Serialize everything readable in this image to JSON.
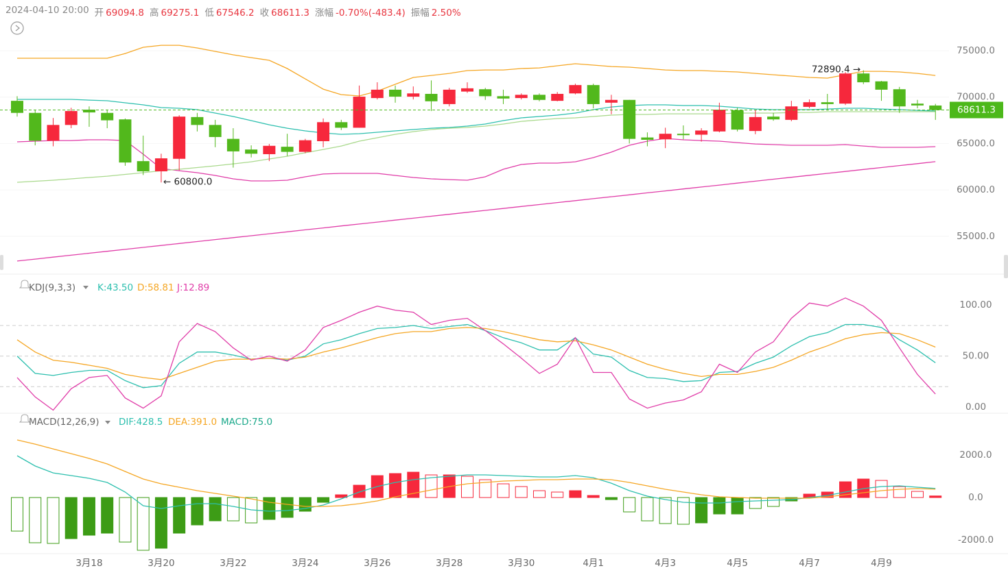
{
  "header": {
    "datetime": "2024-04-10 20:00",
    "fields": [
      {
        "label": "开",
        "value": "69094.8"
      },
      {
        "label": "高",
        "value": "69275.1"
      },
      {
        "label": "低",
        "value": "67546.2"
      },
      {
        "label": "收",
        "value": "68611.3"
      },
      {
        "label": "涨幅",
        "value": "-0.70%(-483.4)"
      },
      {
        "label": "振幅",
        "value": "2.50%"
      }
    ]
  },
  "chart_data": [
    {
      "type": "candlestick",
      "categories": [
        null,
        null,
        null,
        null,
        "3月18",
        null,
        null,
        null,
        "3月20",
        null,
        null,
        null,
        "3月22",
        null,
        null,
        null,
        "3月24",
        null,
        null,
        null,
        "3月26",
        null,
        null,
        null,
        "3月28",
        null,
        null,
        null,
        "3月30",
        null,
        null,
        null,
        "4月1",
        null,
        null,
        null,
        "4月3",
        null,
        null,
        null,
        "4月5",
        null,
        null,
        null,
        "4月7",
        null,
        null,
        null,
        "4月9",
        null,
        null,
        null
      ],
      "open": [
        69600,
        68300,
        65300,
        67000,
        68650,
        68300,
        67600,
        63100,
        62000,
        63350,
        67850,
        67000,
        65500,
        64350,
        63850,
        64650,
        64100,
        65250,
        67300,
        66700,
        69900,
        70800,
        70050,
        70350,
        69250,
        70600,
        70850,
        70100,
        69900,
        70250,
        69600,
        70400,
        71300,
        69400,
        69700,
        65650,
        65450,
        66050,
        65950,
        66300,
        68600,
        66350,
        67900,
        67550,
        68950,
        69450,
        69300,
        72550,
        71700,
        70850,
        69300,
        69094.8
      ],
      "high": [
        70100,
        68650,
        67750,
        68850,
        69000,
        68650,
        67700,
        65850,
        63900,
        68050,
        68300,
        67550,
        66650,
        64800,
        64950,
        66050,
        65500,
        67700,
        67550,
        71250,
        71600,
        71250,
        71150,
        71800,
        71000,
        71600,
        71000,
        70800,
        70400,
        70400,
        70550,
        71450,
        71450,
        70250,
        69700,
        66200,
        66700,
        66950,
        66650,
        69400,
        68850,
        68600,
        68300,
        69600,
        69750,
        70350,
        72700,
        72890.4,
        71750,
        71100,
        69700,
        69275.1
      ],
      "low": [
        67900,
        64800,
        64700,
        66650,
        66800,
        66650,
        62600,
        61600,
        60800,
        62100,
        66300,
        64600,
        62400,
        63500,
        63100,
        63650,
        63950,
        64600,
        66450,
        66700,
        69750,
        69400,
        69750,
        68500,
        69000,
        70450,
        69700,
        69250,
        69750,
        69550,
        69550,
        70300,
        68800,
        68150,
        65000,
        64700,
        64500,
        65450,
        65200,
        66200,
        66300,
        66000,
        67450,
        67400,
        68800,
        68550,
        69150,
        71400,
        69600,
        68300,
        68800,
        67546.2
      ],
      "close": [
        68300,
        65300,
        67000,
        68500,
        68350,
        67500,
        62950,
        62000,
        63400,
        67900,
        67000,
        65700,
        64150,
        63900,
        64750,
        64100,
        65350,
        67300,
        66700,
        70050,
        70800,
        70050,
        70400,
        69550,
        70800,
        70950,
        70100,
        69850,
        70250,
        69700,
        70350,
        71300,
        69250,
        69700,
        65500,
        65400,
        66050,
        65900,
        66400,
        68650,
        66500,
        67850,
        67600,
        69000,
        69450,
        69250,
        72550,
        71600,
        70800,
        69000,
        69100,
        68611.3
      ],
      "up_color": "#f6283c",
      "down_color": "#52b81c",
      "series": [
        {
          "color": "#f5a623",
          "values": [
            74190,
            74190,
            74190,
            74190,
            74190,
            74190,
            74700,
            75370,
            75590,
            75590,
            75300,
            74930,
            74560,
            74260,
            73970,
            73080,
            71970,
            70860,
            70270,
            70130,
            70640,
            71380,
            72120,
            72340,
            72560,
            72860,
            72930,
            72930,
            73080,
            73150,
            73380,
            73600,
            73450,
            73300,
            73230,
            73080,
            72930,
            72860,
            72860,
            72780,
            72710,
            72560,
            72410,
            72270,
            72120,
            72050,
            72410,
            72780,
            72780,
            72710,
            72560,
            72340
          ]
        },
        {
          "color": "#2cbfae",
          "values": [
            69760,
            69760,
            69760,
            69760,
            69680,
            69610,
            69390,
            69170,
            68870,
            68800,
            68650,
            68280,
            67910,
            67470,
            67020,
            66650,
            66360,
            66140,
            65990,
            66060,
            66210,
            66360,
            66510,
            66650,
            66730,
            66880,
            67100,
            67470,
            67760,
            67910,
            68060,
            68280,
            68650,
            68940,
            69090,
            69170,
            69170,
            69090,
            69090,
            69020,
            68870,
            68720,
            68650,
            68650,
            68650,
            68720,
            68800,
            68800,
            68720,
            68650,
            68570,
            68500
          ]
        },
        {
          "color": "#e03ca8",
          "values": [
            65180,
            65250,
            65320,
            65320,
            65400,
            65400,
            65320,
            63850,
            62300,
            62070,
            61850,
            61560,
            61190,
            60970,
            60970,
            61040,
            61410,
            61710,
            61780,
            61780,
            61780,
            61560,
            61340,
            61190,
            61110,
            61040,
            61410,
            62220,
            62740,
            62890,
            62890,
            63030,
            63480,
            64070,
            64810,
            65250,
            65550,
            65400,
            65320,
            65250,
            65100,
            64950,
            64880,
            64810,
            64810,
            64810,
            64880,
            64730,
            64590,
            64590,
            64590,
            64660
          ]
        },
        {
          "color": "#a9d98c",
          "values": [
            60820,
            60930,
            61040,
            61190,
            61340,
            61480,
            61670,
            61850,
            62070,
            62220,
            62410,
            62590,
            62810,
            63030,
            63330,
            63630,
            64000,
            64360,
            64730,
            65250,
            65620,
            65990,
            66280,
            66510,
            66650,
            66730,
            66880,
            67100,
            67390,
            67540,
            67690,
            67760,
            67910,
            68060,
            68130,
            68130,
            68200,
            68200,
            68200,
            68200,
            68280,
            68280,
            68280,
            68350,
            68350,
            68430,
            68430,
            68430,
            68430,
            68430,
            68430,
            68430
          ]
        },
        {
          "color": "#e03ca8",
          "values": [
            52330,
            52540,
            52750,
            52960,
            53170,
            53380,
            53590,
            53800,
            54010,
            54220,
            54430,
            54640,
            54850,
            55060,
            55270,
            55480,
            55690,
            55900,
            56110,
            56320,
            56530,
            56740,
            56950,
            57160,
            57370,
            57580,
            57790,
            58000,
            58210,
            58420,
            58630,
            58840,
            59050,
            59260,
            59470,
            59680,
            59890,
            60100,
            60310,
            60520,
            60730,
            60940,
            61150,
            61360,
            61570,
            61780,
            61990,
            62200,
            62410,
            62620,
            62830,
            63040
          ]
        }
      ],
      "ylim": [
        50920,
        80470
      ],
      "yticks": [
        {
          "value": 55000,
          "label": "55000.0"
        },
        {
          "value": 60000,
          "label": "60000.0"
        },
        {
          "value": 65000,
          "label": "65000.0"
        },
        {
          "value": 70000,
          "label": "70000.0"
        },
        {
          "value": 75000,
          "label": "75000.0"
        }
      ],
      "last_price": {
        "value": 68611.3,
        "label": "68611.3",
        "color": "#4cb81a"
      },
      "high_marker": {
        "value": 72890.4,
        "label": "72890.4 →"
      },
      "low_marker": {
        "value": 60800,
        "label": "← 60800.0"
      }
    },
    {
      "type": "line",
      "title": "KDJ(9,3,3)",
      "series": [
        {
          "name": "K:43.50",
          "color": "#2cbfae",
          "values": [
            50,
            33,
            31,
            34,
            36,
            36,
            26,
            19,
            21,
            43,
            54,
            54,
            51,
            47,
            48,
            46,
            50,
            62,
            66,
            72,
            77,
            78,
            80,
            77,
            79,
            81,
            75,
            68,
            63,
            56,
            56,
            68,
            52,
            49,
            36,
            29,
            28,
            25,
            26,
            34,
            35,
            43,
            49,
            60,
            69,
            73,
            81,
            81,
            78,
            66,
            56,
            43.5
          ]
        },
        {
          "name": "D:58.81",
          "color": "#f5a623",
          "values": [
            66,
            54,
            46,
            44,
            41,
            38,
            32,
            29,
            27,
            33,
            39,
            45,
            47,
            47,
            48,
            47,
            49,
            54,
            58,
            63,
            68,
            72,
            74,
            74,
            77,
            78,
            77,
            74,
            70,
            66,
            64,
            65,
            61,
            56,
            49,
            42,
            37,
            33,
            30,
            32,
            32,
            35,
            39,
            46,
            54,
            60,
            67,
            71,
            73,
            72,
            66,
            58.81
          ]
        },
        {
          "name": "J:12.89",
          "color": "#e03ca8",
          "values": [
            29,
            10,
            -3,
            18,
            29,
            31,
            9,
            -1,
            11,
            64,
            82,
            74,
            58,
            46,
            50,
            45,
            56,
            78,
            85,
            93,
            99,
            95,
            93,
            81,
            85,
            87,
            75,
            62,
            48,
            33,
            42,
            68,
            34,
            34,
            8,
            -1,
            4,
            7,
            15,
            42,
            34,
            54,
            64,
            87,
            102,
            99,
            107,
            99,
            85,
            58,
            32,
            12.89
          ]
        }
      ],
      "ylim": [
        -6,
        127
      ],
      "yticks": [
        {
          "value": 0,
          "label": "0.00"
        },
        {
          "value": 50,
          "label": "50.00"
        },
        {
          "value": 100,
          "label": "100.00"
        }
      ],
      "levels": [
        20,
        50,
        80
      ]
    },
    {
      "type": "macd",
      "title": "MACD(12,26,9)",
      "series": [
        {
          "name": "DIF:428.5",
          "color": "#2cbfae",
          "values": [
            1968,
            1484,
            1161,
            1032,
            903,
            710,
            258,
            -387,
            -516,
            -387,
            -290,
            -290,
            -419,
            -581,
            -645,
            -613,
            -516,
            -355,
            -65,
            258,
            516,
            710,
            839,
            935,
            1000,
            1065,
            1065,
            1032,
            1000,
            968,
            968,
            1032,
            935,
            677,
            323,
            65,
            -97,
            -226,
            -258,
            -258,
            -194,
            -161,
            -129,
            -97,
            0,
            97,
            258,
            419,
            516,
            548,
            484,
            428.5
          ]
        },
        {
          "name": "DEA:391.0",
          "color": "#f5a623",
          "values": [
            2710,
            2516,
            2290,
            2065,
            1839,
            1581,
            1226,
            871,
            645,
            484,
            323,
            194,
            65,
            -65,
            -226,
            -323,
            -419,
            -419,
            -387,
            -290,
            -161,
            32,
            194,
            355,
            516,
            645,
            710,
            774,
            806,
            839,
            839,
            871,
            871,
            839,
            710,
            548,
            387,
            258,
            129,
            32,
            0,
            -32,
            -32,
            -32,
            -32,
            32,
            129,
            226,
            323,
            387,
            419,
            391
          ]
        },
        {
          "name": "MACD:75.0",
          "color": "#1aa88a",
          "up_color": "#f6283c",
          "down_color": "#3d9c16",
          "bar": true,
          "values": [
            -1581,
            -2129,
            -2161,
            -1935,
            -1774,
            -1677,
            -2097,
            -2484,
            -2387,
            -1677,
            -1290,
            -1097,
            -1097,
            -1194,
            -1032,
            -935,
            -645,
            -226,
            129,
            581,
            1032,
            1129,
            1194,
            1065,
            1065,
            1000,
            839,
            645,
            516,
            323,
            258,
            323,
            97,
            -97,
            -677,
            -1097,
            -1226,
            -1258,
            -1194,
            -774,
            -774,
            -516,
            -419,
            -161,
            161,
            258,
            742,
            871,
            806,
            516,
            290,
            75
          ],
          "hollow": [
            true,
            true,
            true,
            false,
            false,
            false,
            true,
            true,
            false,
            false,
            false,
            false,
            true,
            true,
            false,
            false,
            false,
            false,
            false,
            false,
            false,
            false,
            false,
            true,
            false,
            true,
            true,
            true,
            true,
            true,
            true,
            false,
            false,
            false,
            true,
            true,
            true,
            true,
            false,
            false,
            false,
            true,
            true,
            false,
            false,
            false,
            false,
            false,
            true,
            true,
            true,
            false
          ]
        }
      ],
      "ylim": [
        -2645,
        3970
      ],
      "yticks": [
        {
          "value": -2000,
          "label": "-2000.0"
        },
        {
          "value": 0,
          "label": "0.0"
        },
        {
          "value": 2000,
          "label": "2000.0"
        }
      ]
    }
  ]
}
